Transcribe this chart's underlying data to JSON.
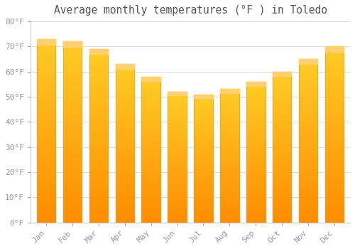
{
  "title": "Average monthly temperatures (°F ) in Toledo",
  "months": [
    "Jan",
    "Feb",
    "Mar",
    "Apr",
    "May",
    "Jun",
    "Jul",
    "Aug",
    "Sep",
    "Oct",
    "Nov",
    "Dec"
  ],
  "values": [
    73,
    72,
    69,
    63,
    58,
    52,
    51,
    53,
    56,
    60,
    65,
    70
  ],
  "bar_color_top": "#FFB733",
  "bar_color_bottom": "#FF9500",
  "bar_color_mid": "#FFA500",
  "bar_edge_color": "#CC8800",
  "ylim": [
    0,
    80
  ],
  "yticks": [
    0,
    10,
    20,
    30,
    40,
    50,
    60,
    70,
    80
  ],
  "ytick_labels": [
    "0°F",
    "10°F",
    "20°F",
    "30°F",
    "40°F",
    "50°F",
    "60°F",
    "70°F",
    "80°F"
  ],
  "background_color": "#ffffff",
  "grid_color": "#dddddd",
  "title_fontsize": 10.5,
  "tick_fontsize": 8,
  "font_color": "#999999",
  "title_color": "#555555"
}
